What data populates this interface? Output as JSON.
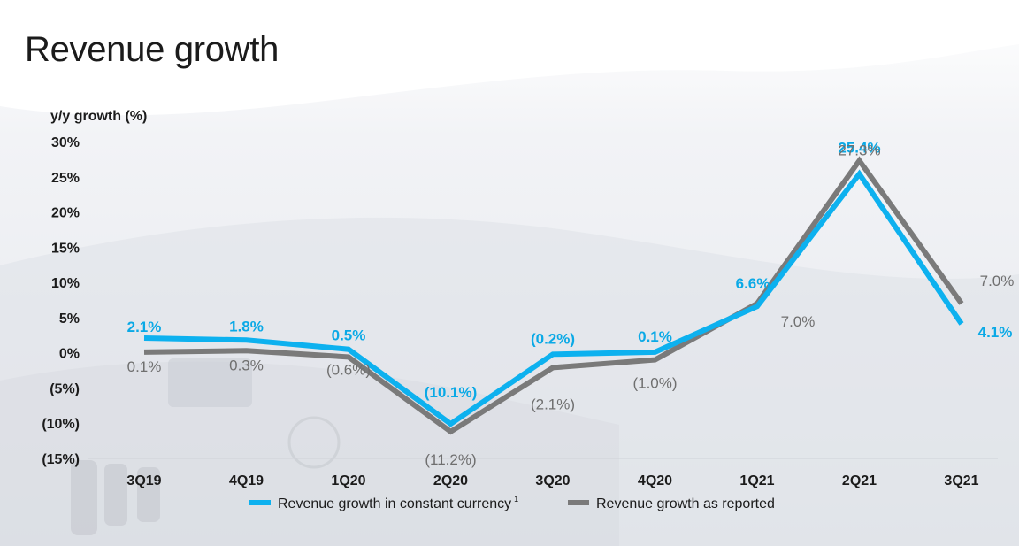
{
  "page": {
    "title": "Revenue growth"
  },
  "chart_data": {
    "type": "line",
    "ylabel": "y/y growth (%)",
    "categories": [
      "3Q19",
      "4Q19",
      "1Q20",
      "2Q20",
      "3Q20",
      "4Q20",
      "1Q21",
      "2Q21",
      "3Q21"
    ],
    "ylim": [
      -15,
      30
    ],
    "yticks": [
      30,
      25,
      20,
      15,
      10,
      5,
      0,
      -5,
      -10,
      -15
    ],
    "ytick_labels": [
      "30%",
      "25%",
      "20%",
      "15%",
      "10%",
      "5%",
      "0%",
      "(5%)",
      "(10%)",
      "(15%)"
    ],
    "grid": false,
    "legend_position": "bottom",
    "series": [
      {
        "name": "Revenue growth in constant currency",
        "footnote": "1",
        "color": "#0db1ef",
        "values": [
          2.1,
          1.8,
          0.5,
          -10.1,
          -0.2,
          0.1,
          6.6,
          25.4,
          4.1
        ],
        "labels": [
          "2.1%",
          "1.8%",
          "0.5%",
          "(10.1%)",
          "(0.2%)",
          "0.1%",
          "6.6%",
          "25.4%",
          "4.1%"
        ]
      },
      {
        "name": "Revenue growth as reported",
        "color": "#7a7a7a",
        "values": [
          0.1,
          0.3,
          -0.6,
          -11.2,
          -2.1,
          -1.0,
          7.0,
          27.3,
          7.0
        ],
        "labels": [
          "0.1%",
          "0.3%",
          "(0.6%)",
          "(11.2%)",
          "(2.1%)",
          "(1.0%)",
          "7.0%",
          "27.3%",
          "7.0%"
        ]
      }
    ]
  }
}
